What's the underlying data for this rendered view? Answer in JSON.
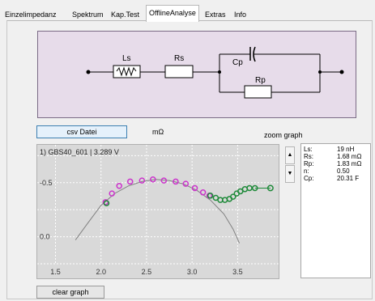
{
  "tabs": [
    {
      "label": "Einzelimpedanz",
      "active": false
    },
    {
      "label": "Spektrum",
      "active": false
    },
    {
      "label": "Kap.Test",
      "active": false
    },
    {
      "label": "OfflineAnalyse",
      "active": true
    },
    {
      "label": "Extras",
      "active": false
    },
    {
      "label": "Info",
      "active": false
    }
  ],
  "circuit": {
    "labels": {
      "ls": "Ls",
      "rs": "Rs",
      "cp": "Cp",
      "rp": "Rp"
    }
  },
  "toolbar": {
    "csv_button": "csv Datei",
    "unit_label": "mΩ",
    "zoom_label": "zoom graph",
    "clear_button": "clear graph"
  },
  "scroll": {
    "up": "▲",
    "down": "▼"
  },
  "plot": {
    "caption": "1) GBS40_601 | 3.289 V",
    "marker_label": "1",
    "colors": {
      "background": "#d9d9d9",
      "model": "#808080",
      "measured": "#cc33cc",
      "fit": "#1f8a3a"
    }
  },
  "chart_data": {
    "type": "scatter",
    "xlim": [
      1.3,
      3.95
    ],
    "ylim": [
      0.25,
      -0.85
    ],
    "x_ticks": [
      "1.5",
      "2.0",
      "2.5",
      "3.0",
      "3.5"
    ],
    "y_ticks": [
      "-0.5",
      "0.0"
    ],
    "grid": true,
    "series": [
      {
        "kind": "measured",
        "points": [
          [
            2.05,
            -0.32
          ],
          [
            2.12,
            -0.4
          ],
          [
            2.2,
            -0.47
          ],
          [
            2.32,
            -0.51
          ],
          [
            2.45,
            -0.52
          ],
          [
            2.57,
            -0.53
          ],
          [
            2.69,
            -0.52
          ],
          [
            2.82,
            -0.51
          ],
          [
            2.93,
            -0.49
          ],
          [
            3.03,
            -0.45
          ],
          [
            3.12,
            -0.41
          ],
          [
            3.19,
            -0.38
          ]
        ]
      },
      {
        "kind": "fit",
        "points": [
          [
            2.06,
            -0.31
          ],
          [
            3.2,
            -0.38
          ],
          [
            3.26,
            -0.36
          ],
          [
            3.31,
            -0.34
          ],
          [
            3.36,
            -0.34
          ],
          [
            3.41,
            -0.35
          ],
          [
            3.45,
            -0.37
          ],
          [
            3.49,
            -0.4
          ],
          [
            3.53,
            -0.42
          ],
          [
            3.58,
            -0.44
          ],
          [
            3.63,
            -0.45
          ],
          [
            3.69,
            -0.45
          ]
        ]
      },
      {
        "kind": "model",
        "points": [
          [
            1.72,
            0.03
          ],
          [
            1.85,
            -0.12
          ],
          [
            2.0,
            -0.29
          ],
          [
            2.15,
            -0.4
          ],
          [
            2.3,
            -0.47
          ],
          [
            2.45,
            -0.51
          ],
          [
            2.6,
            -0.53
          ],
          [
            2.75,
            -0.52
          ],
          [
            2.9,
            -0.49
          ],
          [
            3.05,
            -0.43
          ],
          [
            3.2,
            -0.34
          ],
          [
            3.35,
            -0.21
          ],
          [
            3.45,
            -0.07
          ],
          [
            3.52,
            0.06
          ]
        ]
      },
      {
        "kind": "fit-tail",
        "points": [
          [
            3.69,
            -0.45
          ],
          [
            3.8,
            -0.45
          ],
          [
            3.86,
            -0.45
          ]
        ]
      }
    ]
  },
  "results": [
    {
      "key": "Ls:",
      "value": "19 nH"
    },
    {
      "key": "Rs:",
      "value": "1.68 mΩ"
    },
    {
      "key": "Rp:",
      "value": "1.83 mΩ"
    },
    {
      "key": "n:",
      "value": "0.50"
    },
    {
      "key": "Cp:",
      "value": "20.31 F"
    }
  ]
}
